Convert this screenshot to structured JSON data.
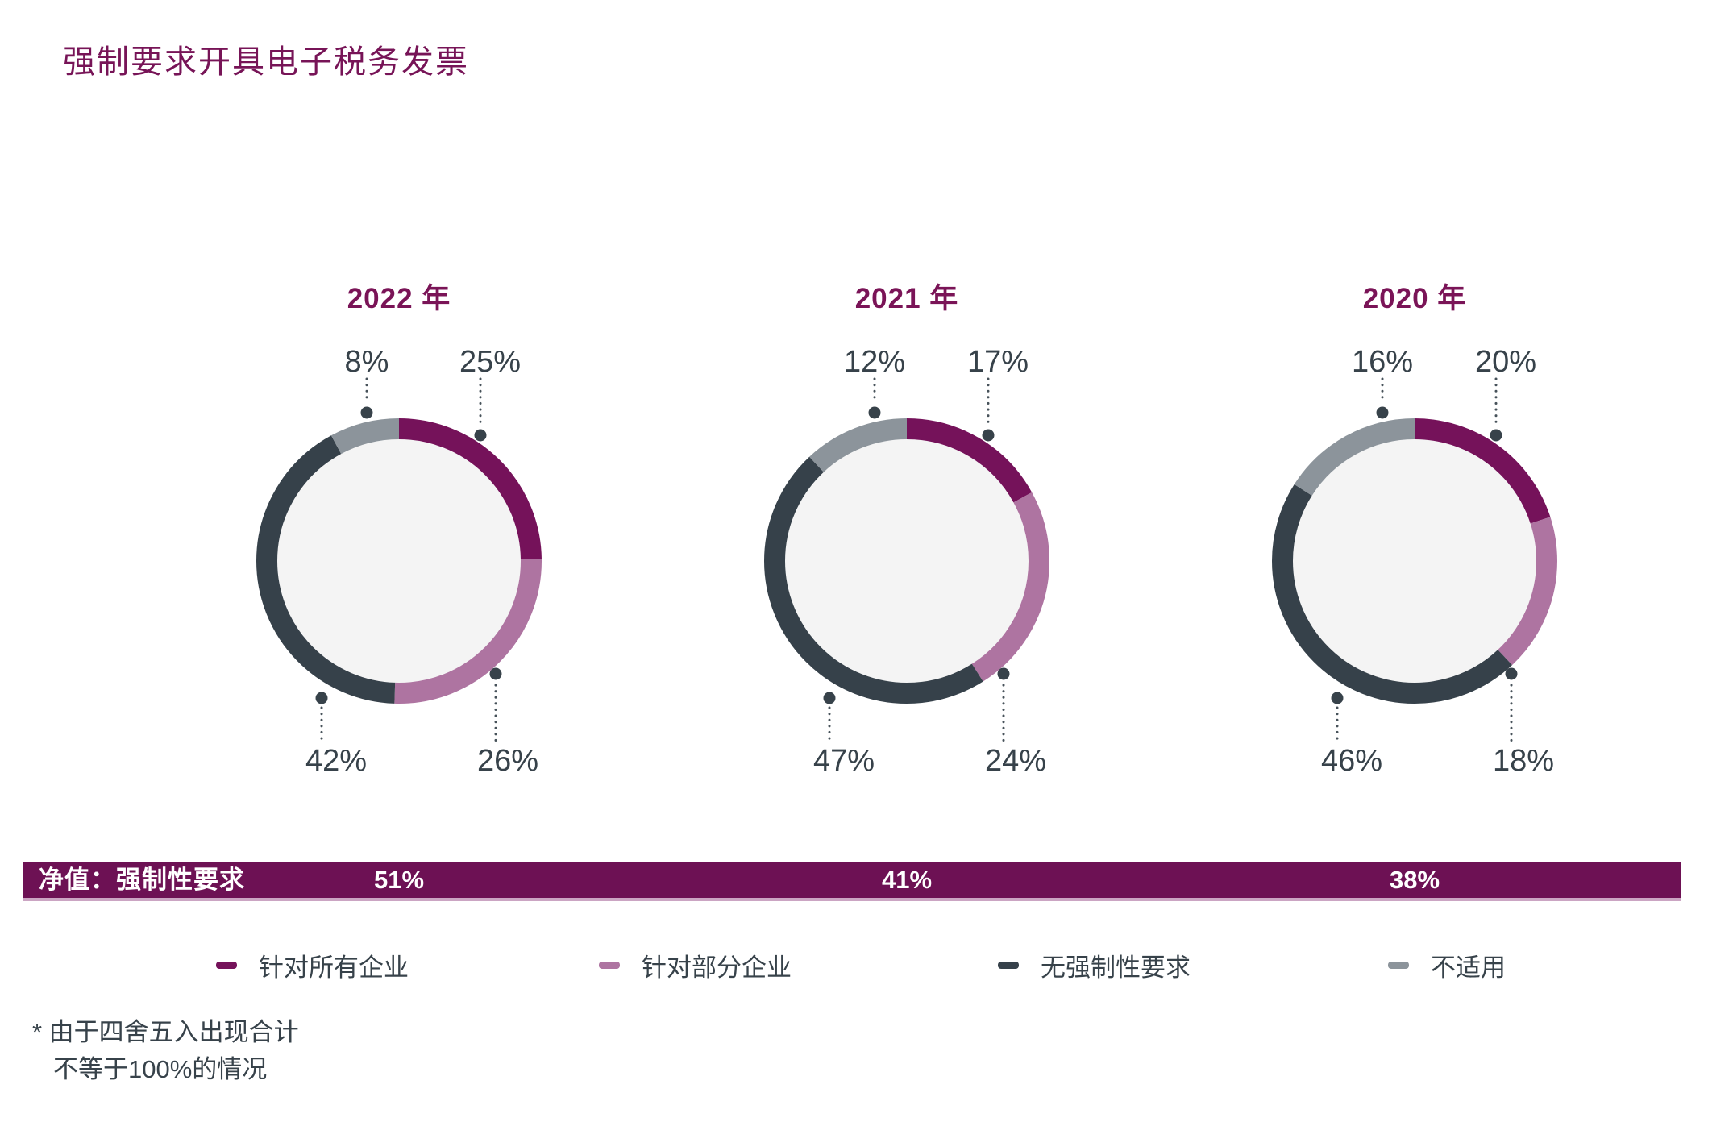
{
  "page_title": "强制要求开具电子税务发票",
  "chart_data": {
    "type": "pie",
    "variant": "donut",
    "unit": "%",
    "categories": [
      "针对所有企业",
      "针对部分企业",
      "无强制性要求",
      "不适用"
    ],
    "colors": [
      "#75125A",
      "#AE74A1",
      "#36414A",
      "#8C949B"
    ],
    "charts": [
      {
        "title": "2022 年",
        "values": [
          25,
          26,
          42,
          8
        ]
      },
      {
        "title": "2021 年",
        "values": [
          17,
          24,
          47,
          12
        ]
      },
      {
        "title": "2020 年",
        "values": [
          20,
          18,
          46,
          16
        ]
      }
    ],
    "layout": "three donuts side by side, segments clockwise from 12 o'clock in category order, percent labels connected by dotted leaders"
  },
  "net_bar": {
    "label": "净值：强制性要求",
    "values": [
      "51%",
      "41%",
      "38%"
    ],
    "color": "#6D1154"
  },
  "legend": {
    "items": [
      {
        "label": "针对所有企业",
        "color": "#75125A"
      },
      {
        "label": "针对部分企业",
        "color": "#AE74A1"
      },
      {
        "label": "无强制性要求",
        "color": "#36414A"
      },
      {
        "label": "不适用",
        "color": "#8C949B"
      }
    ]
  },
  "footnote": {
    "line1": "* 由于四舍五入出现合计",
    "line2": "不等于100%的情况"
  }
}
